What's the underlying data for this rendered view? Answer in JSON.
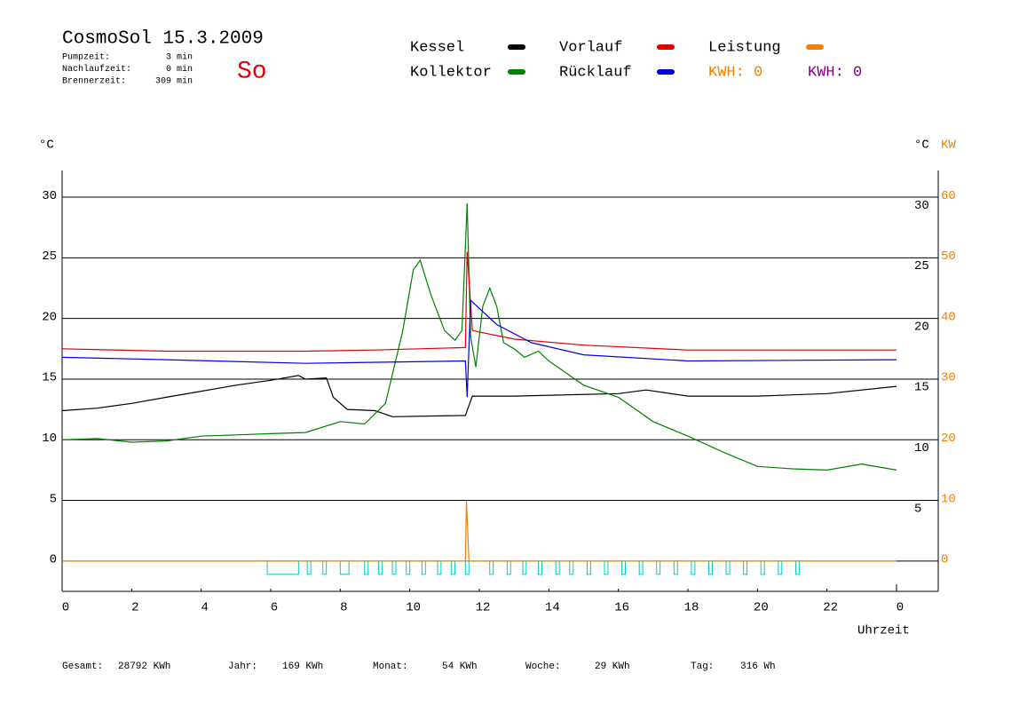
{
  "chart_data": {
    "type": "line",
    "title": "CosmoSol 15.3.2009",
    "day": "So",
    "stats": [
      {
        "label": "Pumpzeit:",
        "value": "3 min"
      },
      {
        "label": "Nachlaufzeit:",
        "value": "0 min"
      },
      {
        "label": "Brennerzeit:",
        "value": "309 min"
      }
    ],
    "kwh_labels": [
      {
        "text": "KWH: 0",
        "color": "#f08000"
      },
      {
        "text": "KWH: 0",
        "color": "#800080"
      }
    ],
    "y_label": "°C",
    "y2_labels": [
      {
        "text": "°C",
        "color": "#000000"
      },
      {
        "text": "KW",
        "color": "#f08000"
      }
    ],
    "x_label": "Uhrzeit",
    "xlim": [
      0,
      25.2
    ],
    "xticks": [
      0,
      2,
      4,
      6,
      8,
      10,
      12,
      14,
      16,
      18,
      20,
      22,
      {
        "value": 24,
        "label": "0"
      }
    ],
    "ylim": [
      -2.5,
      32.2
    ],
    "yticks": [
      0,
      5,
      10,
      15,
      20,
      25,
      30
    ],
    "yticks_right": [
      5,
      10,
      15,
      20,
      25,
      30
    ],
    "y2lim": [
      -5,
      64.4
    ],
    "y2ticks": [
      0,
      10,
      20,
      30,
      40,
      50,
      60
    ],
    "y2color": "#f08000",
    "grid": true,
    "series": [
      {
        "name": "Kessel",
        "color": "#000000",
        "x": [
          0,
          1,
          2,
          3,
          4,
          5,
          6,
          6.8,
          7.0,
          7.6,
          7.8,
          8.2,
          9.0,
          9.5,
          11.6,
          11.8,
          13,
          16,
          16.8,
          18,
          20,
          22,
          24
        ],
        "values": [
          12.4,
          12.6,
          13.0,
          13.5,
          14.0,
          14.5,
          14.9,
          15.3,
          15.0,
          15.1,
          13.5,
          12.5,
          12.4,
          11.9,
          12.0,
          13.6,
          13.6,
          13.8,
          14.1,
          13.6,
          13.6,
          13.8,
          14.4
        ]
      },
      {
        "name": "Kollektor",
        "color": "#008000",
        "x": [
          0,
          1,
          2,
          3,
          4,
          5,
          6,
          7,
          8,
          8.7,
          9.3,
          9.8,
          10.1,
          10.3,
          10.6,
          11,
          11.3,
          11.5,
          11.65,
          11.75,
          11.9,
          12.1,
          12.3,
          12.5,
          12.7,
          13,
          13.3,
          13.7,
          14,
          14.5,
          15,
          16,
          17,
          18,
          19,
          20,
          21,
          22,
          23,
          24
        ],
        "values": [
          10,
          10.1,
          9.8,
          9.9,
          10.3,
          10.4,
          10.5,
          10.6,
          11.5,
          11.3,
          13,
          19,
          24,
          24.8,
          22,
          19,
          18.2,
          19,
          29.5,
          18.5,
          16,
          21,
          22.5,
          21,
          18,
          17.5,
          16.8,
          17.3,
          16.5,
          15.5,
          14.5,
          13.5,
          11.5,
          10.3,
          9,
          7.8,
          7.6,
          7.5,
          8,
          7.5
        ]
      },
      {
        "name": "Vorlauf",
        "color": "#e00000",
        "x": [
          0,
          3,
          7,
          9,
          11.6,
          11.65,
          11.8,
          13,
          15,
          18,
          24
        ],
        "values": [
          17.5,
          17.3,
          17.3,
          17.4,
          17.6,
          25.5,
          19,
          18.3,
          17.8,
          17.4,
          17.4
        ]
      },
      {
        "name": "Rücklauf",
        "color": "#0000e0",
        "x": [
          0,
          3,
          7,
          11.6,
          11.65,
          11.75,
          12.5,
          13.5,
          15,
          18,
          24
        ],
        "values": [
          16.8,
          16.6,
          16.3,
          16.5,
          13.5,
          21.5,
          19.5,
          18,
          17,
          16.5,
          16.6
        ]
      },
      {
        "name": "Leistung",
        "color": "#f08000",
        "axis": "y2",
        "x": [
          0,
          11.6,
          11.63,
          11.7,
          24
        ],
        "values": [
          0,
          0,
          10,
          0,
          0
        ]
      }
    ],
    "pump": {
      "color": "#00c8c8",
      "starts": [
        5.9,
        7.05,
        7.5,
        8.0,
        8.7,
        9.1,
        9.5,
        9.9,
        10.35,
        10.8,
        11.2,
        11.6,
        12.3,
        12.8,
        13.25,
        13.7,
        14.2,
        14.6,
        15.1,
        15.6,
        16.1,
        16.6,
        17.1,
        17.6,
        18.1,
        18.6,
        19.1,
        19.6,
        20.1,
        20.6,
        21.1
      ],
      "ends": [
        6.8,
        7.15,
        7.6,
        8.25,
        8.8,
        9.2,
        9.6,
        10.0,
        10.45,
        10.9,
        11.3,
        11.7,
        12.4,
        12.9,
        13.35,
        13.8,
        14.3,
        14.7,
        15.2,
        15.7,
        16.2,
        16.7,
        17.2,
        17.7,
        18.2,
        18.7,
        19.2,
        19.7,
        20.2,
        20.7,
        21.2
      ]
    },
    "totals": [
      {
        "label": "Gesamt:",
        "value": "28792 KWh"
      },
      {
        "label": "Jahr:",
        "value": "169 KWh"
      },
      {
        "label": "Monat:",
        "value": "54 KWh"
      },
      {
        "label": "Woche:",
        "value": "29 KWh"
      },
      {
        "label": "Tag:",
        "value": "316 Wh"
      }
    ]
  }
}
